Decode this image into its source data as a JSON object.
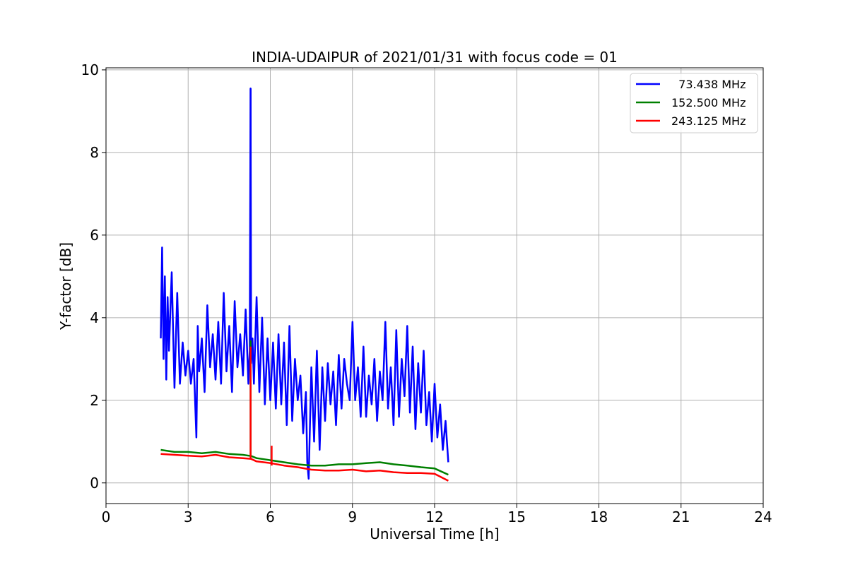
{
  "chart_data": {
    "type": "line",
    "title": "INDIA-UDAIPUR of 2021/01/31 with focus code = 01",
    "xlabel": "Universal Time [h]",
    "ylabel": "Y-factor [dB]",
    "xlim": [
      0,
      24
    ],
    "ylim": [
      -0.5,
      10.05
    ],
    "xticks": [
      0,
      3,
      6,
      9,
      12,
      15,
      18,
      21,
      24
    ],
    "yticks": [
      0,
      2,
      4,
      6,
      8,
      10
    ],
    "grid": true,
    "legend_position": "top-right",
    "series": [
      {
        "name": "  73.438 MHz",
        "color": "#0000ff",
        "x": [
          2.0,
          2.05,
          2.1,
          2.15,
          2.2,
          2.25,
          2.3,
          2.4,
          2.5,
          2.6,
          2.7,
          2.8,
          2.9,
          3.0,
          3.1,
          3.2,
          3.3,
          3.35,
          3.4,
          3.5,
          3.6,
          3.7,
          3.8,
          3.9,
          4.0,
          4.1,
          4.2,
          4.3,
          4.4,
          4.5,
          4.6,
          4.7,
          4.8,
          4.9,
          5.0,
          5.1,
          5.2,
          5.25,
          5.28,
          5.3,
          5.35,
          5.4,
          5.5,
          5.6,
          5.7,
          5.8,
          5.9,
          6.0,
          6.1,
          6.2,
          6.3,
          6.4,
          6.5,
          6.6,
          6.7,
          6.8,
          6.9,
          7.0,
          7.1,
          7.2,
          7.3,
          7.35,
          7.4,
          7.5,
          7.6,
          7.7,
          7.8,
          7.9,
          8.0,
          8.1,
          8.2,
          8.3,
          8.4,
          8.5,
          8.6,
          8.7,
          8.8,
          8.9,
          9.0,
          9.1,
          9.2,
          9.3,
          9.4,
          9.5,
          9.6,
          9.7,
          9.8,
          9.9,
          10.0,
          10.1,
          10.2,
          10.3,
          10.4,
          10.5,
          10.6,
          10.7,
          10.8,
          10.9,
          11.0,
          11.1,
          11.2,
          11.3,
          11.4,
          11.5,
          11.6,
          11.7,
          11.8,
          11.9,
          12.0,
          12.1,
          12.2,
          12.3,
          12.4,
          12.5
        ],
        "y": [
          3.5,
          5.7,
          3.0,
          5.0,
          2.5,
          4.5,
          3.2,
          5.1,
          2.3,
          4.6,
          2.4,
          3.4,
          2.6,
          3.2,
          2.4,
          3.0,
          1.1,
          3.8,
          2.7,
          3.5,
          2.2,
          4.3,
          2.8,
          3.6,
          2.5,
          3.9,
          2.4,
          4.6,
          2.7,
          3.8,
          2.2,
          4.4,
          2.8,
          3.6,
          2.6,
          4.2,
          2.4,
          3.2,
          9.55,
          2.9,
          3.5,
          2.4,
          4.5,
          2.2,
          4.0,
          1.9,
          3.5,
          2.0,
          3.4,
          1.8,
          3.6,
          1.9,
          3.4,
          1.4,
          3.8,
          1.5,
          3.0,
          2.0,
          2.6,
          1.2,
          2.2,
          0.5,
          0.1,
          2.8,
          1.0,
          3.2,
          0.8,
          2.8,
          1.5,
          2.9,
          1.9,
          2.7,
          1.4,
          3.1,
          1.8,
          3.0,
          2.4,
          2.0,
          3.9,
          2.0,
          2.8,
          1.6,
          3.3,
          1.6,
          2.6,
          1.9,
          3.0,
          1.5,
          2.7,
          2.0,
          3.9,
          1.8,
          2.8,
          1.4,
          3.7,
          1.6,
          3.0,
          2.1,
          3.8,
          1.7,
          3.3,
          1.3,
          2.9,
          1.7,
          3.2,
          1.4,
          2.2,
          1.0,
          2.4,
          1.1,
          1.9,
          0.8,
          1.5,
          0.5
        ],
        "spikes": [
          [
            5.28,
            9.55
          ],
          [
            5.28,
            2.9
          ]
        ]
      },
      {
        "name": "152.500 MHz",
        "color": "#008000",
        "x": [
          2.0,
          2.5,
          3.0,
          3.5,
          4.0,
          4.5,
          5.0,
          5.3,
          5.5,
          6.0,
          6.5,
          7.0,
          7.5,
          8.0,
          8.5,
          9.0,
          9.5,
          10.0,
          10.5,
          11.0,
          11.5,
          12.0,
          12.5
        ],
        "y": [
          0.8,
          0.75,
          0.75,
          0.72,
          0.75,
          0.7,
          0.68,
          0.65,
          0.6,
          0.55,
          0.5,
          0.45,
          0.42,
          0.42,
          0.45,
          0.45,
          0.48,
          0.5,
          0.45,
          0.42,
          0.38,
          0.35,
          0.2
        ],
        "spikes": [
          [
            5.28,
            3.45
          ]
        ]
      },
      {
        "name": "243.125 MHz",
        "color": "#ff0000",
        "x": [
          2.0,
          2.5,
          3.0,
          3.5,
          4.0,
          4.5,
          5.0,
          5.3,
          5.5,
          6.0,
          6.5,
          7.0,
          7.5,
          8.0,
          8.5,
          9.0,
          9.5,
          10.0,
          10.5,
          11.0,
          11.5,
          12.0,
          12.5
        ],
        "y": [
          0.7,
          0.68,
          0.66,
          0.64,
          0.68,
          0.62,
          0.6,
          0.58,
          0.52,
          0.48,
          0.42,
          0.38,
          0.32,
          0.3,
          0.3,
          0.32,
          0.28,
          0.3,
          0.26,
          0.24,
          0.24,
          0.22,
          0.05
        ],
        "spikes": [
          [
            5.28,
            3.3
          ],
          [
            6.05,
            0.9
          ]
        ]
      }
    ]
  }
}
